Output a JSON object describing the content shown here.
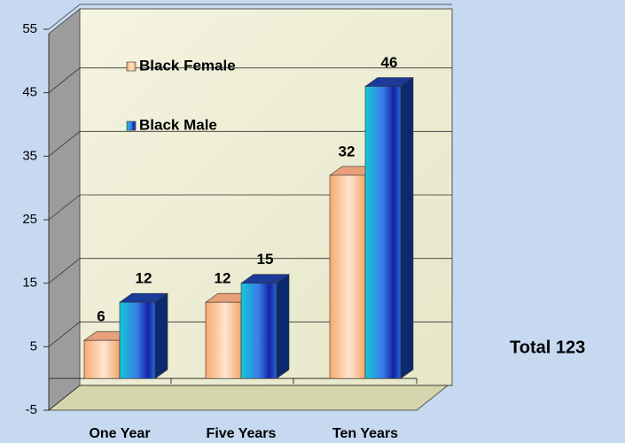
{
  "chart_data": {
    "type": "bar",
    "categories": [
      "One Year",
      "Five Years",
      "Ten Years"
    ],
    "series": [
      {
        "name": "Black Female",
        "color": "#f9b98a",
        "values": [
          6,
          12,
          32
        ]
      },
      {
        "name": "Black Male",
        "color": "#1cb8e0",
        "values": [
          12,
          15,
          46
        ]
      }
    ],
    "ylim": [
      -5,
      55
    ],
    "yticks": [
      -5,
      5,
      15,
      25,
      35,
      45,
      55
    ],
    "grid": true,
    "annotation": "Total 123"
  }
}
